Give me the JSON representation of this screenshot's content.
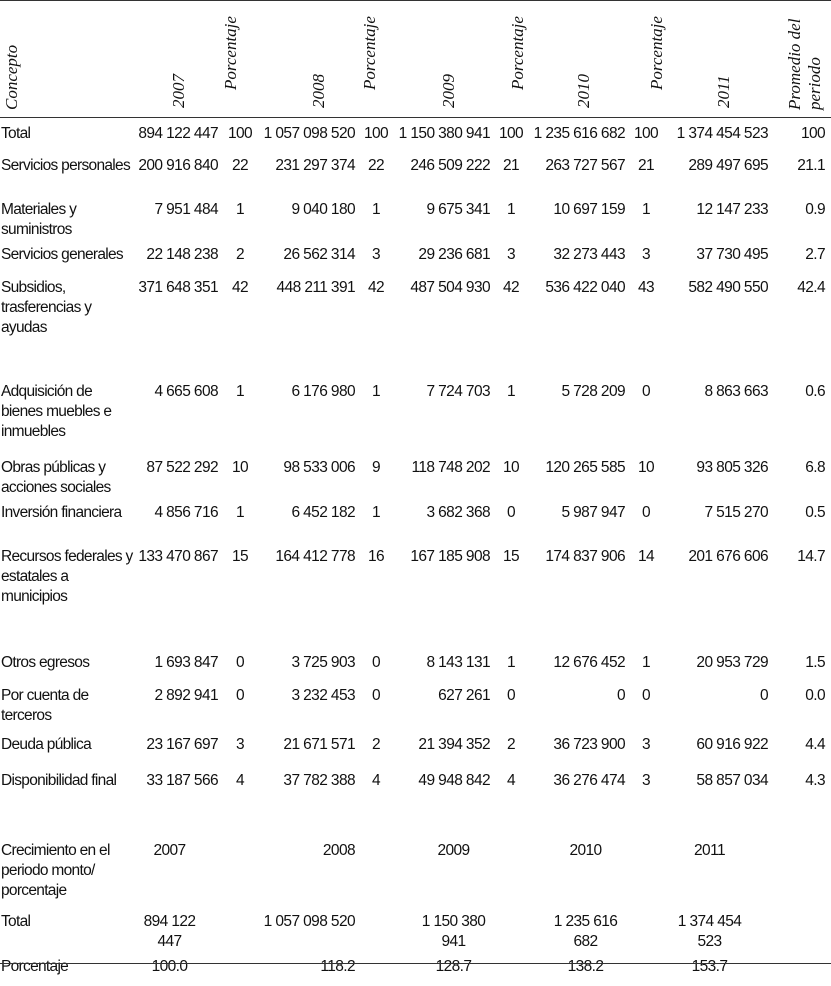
{
  "header": {
    "concepto": "Concepto",
    "years": [
      "2007",
      "2008",
      "2009",
      "2010",
      "2011"
    ],
    "porcentaje": "Porcentaje",
    "promedio_line1": "Promedio del",
    "promedio_line2": "periodo"
  },
  "rows": [
    {
      "concepto": "Total",
      "values": [
        "894 122 447",
        "100",
        "1 057 098 520",
        "100",
        "1 150 380 941",
        "100",
        "1 235 616 682",
        "100",
        "1 374 454 523"
      ],
      "promedio": "100"
    },
    {
      "concepto": "Servicios personales",
      "values": [
        "200 916 840",
        "22",
        "231 297 374",
        "22",
        "246 509 222",
        "21",
        "263 727 567",
        "21",
        "289 497 695"
      ],
      "promedio": "21.1"
    },
    {
      "concepto": "Materiales y suministros",
      "values": [
        "7 951 484",
        "1",
        "9 040 180",
        "1",
        "9 675 341",
        "1",
        "10 697 159",
        "1",
        "12 147 233"
      ],
      "promedio": "0.9"
    },
    {
      "concepto": "Servicios generales",
      "values": [
        "22 148 238",
        "2",
        "26 562 314",
        "3",
        "29 236 681",
        "3",
        "32 273 443",
        "3",
        "37 730 495"
      ],
      "promedio": "2.7"
    },
    {
      "concepto": "Subsidios, trasferencias y ayudas",
      "values": [
        "371 648 351",
        "42",
        "448 211 391",
        "42",
        "487 504 930",
        "42",
        "536 422 040",
        "43",
        "582 490 550"
      ],
      "promedio": "42.4"
    },
    {
      "concepto": "Adquisición de bienes muebles e inmuebles",
      "values": [
        "4 665 608",
        "1",
        "6 176 980",
        "1",
        "7 724 703",
        "1",
        "5 728 209",
        "0",
        "8 863 663"
      ],
      "promedio": "0.6"
    },
    {
      "concepto": "Obras públicas y acciones sociales",
      "values": [
        "87 522 292",
        "10",
        "98 533 006",
        "9",
        "118 748 202",
        "10",
        "120 265 585",
        "10",
        "93 805 326"
      ],
      "promedio": "6.8"
    },
    {
      "concepto": "Inversión financiera",
      "values": [
        "4 856 716",
        "1",
        "6 452 182",
        "1",
        "3 682 368",
        "0",
        "5 987 947",
        "0",
        "7 515 270"
      ],
      "promedio": "0.5"
    },
    {
      "concepto": "Recursos federales y estatales a municipios",
      "values": [
        "133 470 867",
        "15",
        "164 412 778",
        "16",
        "167 185 908",
        "15",
        "174 837 906",
        "14",
        "201 676 606"
      ],
      "promedio": "14.7"
    },
    {
      "concepto": "Otros egresos",
      "values": [
        "1 693 847",
        "0",
        "3 725 903",
        "0",
        "8 143 131",
        "1",
        "12 676 452",
        "1",
        "20 953 729"
      ],
      "promedio": "1.5"
    },
    {
      "concepto": "Por cuenta de terceros",
      "values": [
        "2 892 941",
        "0",
        "3 232 453",
        "0",
        "627 261",
        "0",
        "0",
        "0",
        "0"
      ],
      "promedio": "0.0"
    },
    {
      "concepto": "Deuda pública",
      "values": [
        "23 167 697",
        "3",
        "21 671 571",
        "2",
        "21 394 352",
        "2",
        "36 723 900",
        "3",
        "60 916 922"
      ],
      "promedio": "4.4"
    },
    {
      "concepto": "Disponibilidad final",
      "values": [
        "33 187 566",
        "4",
        "37 782 388",
        "4",
        "49 948 842",
        "4",
        "36 276 474",
        "3",
        "58 857 034"
      ],
      "promedio": "4.3"
    }
  ],
  "growth": {
    "concepto": "Crecimiento en el periodo monto/ porcentaje",
    "years": [
      "2007",
      "2008",
      "2009",
      "2010",
      "2011"
    ],
    "total_label": "Total",
    "totals": [
      "894 122 447",
      "1 057 098 520",
      "1 150 380 941",
      "1 235 616 682",
      "1 374 454 523"
    ],
    "pct_label": "Porcentaje",
    "pcts": [
      "100.0",
      "118.2",
      "128.7",
      "138.2",
      "153.7"
    ]
  }
}
